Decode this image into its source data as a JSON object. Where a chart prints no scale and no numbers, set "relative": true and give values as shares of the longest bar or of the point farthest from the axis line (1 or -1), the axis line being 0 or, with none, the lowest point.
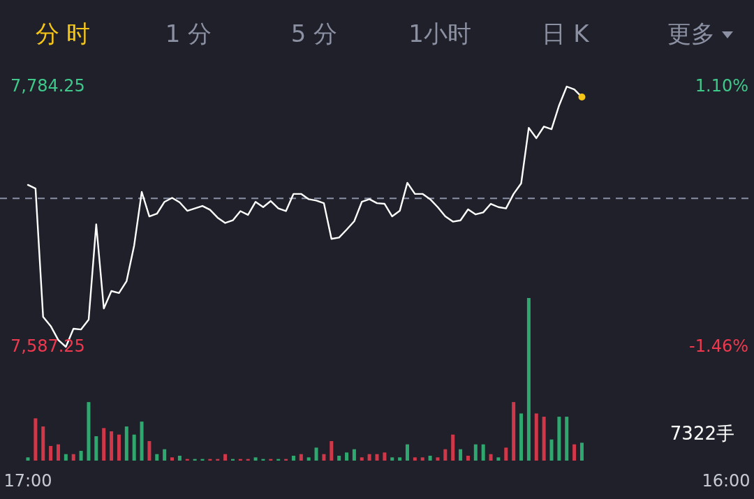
{
  "chart_data": [
    {
      "type": "line",
      "annotations": [
        "分 时",
        "1 分",
        "5 分",
        "1小时",
        "日 K",
        "更多"
      ],
      "categories": [
        null,
        null,
        null,
        null,
        null,
        null,
        null,
        null,
        null,
        null,
        null,
        null,
        null,
        null,
        null,
        null,
        null,
        null,
        null,
        null,
        null,
        null,
        null,
        null,
        null,
        null,
        null,
        null,
        null,
        null,
        null,
        null,
        null,
        null,
        null,
        null,
        null,
        null,
        null,
        null,
        null,
        null,
        null,
        null,
        null,
        null,
        null,
        null,
        null,
        null,
        null,
        null,
        null,
        null,
        null,
        null,
        null,
        null,
        null,
        null,
        null,
        null,
        null,
        null,
        null,
        null,
        null,
        null,
        null,
        null,
        null,
        null,
        null,
        null,
        null,
        null,
        null,
        null,
        null,
        null,
        null,
        null,
        null,
        null,
        null,
        null,
        null,
        null,
        null,
        null,
        null,
        null,
        null
      ],
      "series": [
        {
          "color": "#ffffff",
          "values": [
            7709.8,
            7707.1,
            7610,
            7603,
            7592.5,
            7587.25,
            7601,
            7600.4,
            7607.8,
            7680,
            7616.3,
            7629.5,
            7628,
            7637,
            7664,
            7704.5,
            7686,
            7688,
            7697,
            7700,
            7696.6,
            7690.2,
            7692,
            7693.9,
            7691,
            7685,
            7681,
            7683,
            7690,
            7687.1,
            7697,
            7693,
            7697.6,
            7692,
            7690,
            7703,
            7703,
            7699,
            7698,
            7696,
            7669,
            7670,
            7676,
            7682.3,
            7697,
            7699,
            7696,
            7695.5,
            7686,
            7690.2,
            7711.4,
            7703,
            7703,
            7699,
            7693,
            7686,
            7682,
            7683,
            7691.3,
            7687.5,
            7689,
            7695.5,
            7693,
            7692,
            7703,
            7711,
            7753,
            7745.2,
            7754,
            7752,
            7770,
            7784.25,
            7782.1,
            7776.3,
            null,
            null,
            null,
            null,
            null,
            null,
            null,
            null,
            null,
            null,
            null,
            null,
            null,
            null,
            null,
            null,
            null,
            null,
            null
          ]
        },
        {
          "type": "scatter",
          "color": "#f5c518",
          "values": [
            null,
            null,
            null,
            null,
            null,
            null,
            null,
            null,
            null,
            null,
            null,
            null,
            null,
            null,
            null,
            null,
            null,
            null,
            null,
            null,
            null,
            null,
            null,
            null,
            null,
            null,
            null,
            null,
            null,
            null,
            null,
            null,
            null,
            null,
            null,
            null,
            null,
            null,
            null,
            null,
            null,
            null,
            null,
            null,
            null,
            null,
            null,
            null,
            null,
            null,
            null,
            null,
            null,
            null,
            null,
            null,
            null,
            null,
            null,
            null,
            null,
            null,
            null,
            null,
            null,
            null,
            null,
            null,
            null,
            null,
            null,
            null,
            null,
            7776.3,
            null,
            null,
            null,
            null,
            null,
            null,
            null,
            null,
            null,
            null,
            null,
            null,
            null,
            null,
            null,
            null,
            null,
            null,
            null
          ]
        }
      ],
      "ylim": [
        7587.25,
        7784.25
      ],
      "yticks": [
        {
          "value": 7784.25,
          "label": "7,784.25"
        },
        {
          "value": 7587.25,
          "label": "7,587.25"
        }
      ],
      "y2lim": [
        -1.46,
        1.1
      ],
      "y2ticks": [
        {
          "value": 1.1,
          "label": "1.10%"
        },
        {
          "value": -1.46,
          "label": "-1.46%"
        }
      ],
      "ref_lines": [
        {
          "axis": "y",
          "value": 7699.6,
          "color": "#8a90a6",
          "line_style": "dashed"
        }
      ],
      "tick_labels": "y"
    },
    {
      "type": "bar",
      "relative": true,
      "annotations": [
        "7322手"
      ],
      "categories": [
        "17:00",
        null,
        null,
        null,
        null,
        null,
        null,
        null,
        null,
        null,
        null,
        null,
        null,
        null,
        null,
        null,
        null,
        null,
        null,
        null,
        null,
        null,
        null,
        null,
        null,
        null,
        null,
        null,
        null,
        null,
        null,
        null,
        null,
        null,
        null,
        null,
        null,
        null,
        null,
        null,
        null,
        null,
        null,
        null,
        null,
        null,
        null,
        null,
        null,
        null,
        null,
        null,
        null,
        null,
        null,
        null,
        null,
        null,
        null,
        null,
        null,
        null,
        null,
        null,
        null,
        null,
        null,
        null,
        null,
        null,
        null,
        null,
        null,
        null,
        null,
        null,
        null,
        null,
        null,
        null,
        null,
        null,
        null,
        null,
        null,
        null,
        null,
        null,
        null,
        null,
        null,
        null,
        "16:00"
      ],
      "values": [
        0.02,
        0.26,
        0.21,
        0.09,
        0.1,
        0.04,
        0.04,
        0.06,
        0.36,
        0.15,
        0.2,
        0.18,
        0.16,
        0.21,
        0.16,
        0.24,
        0.12,
        0.04,
        0.07,
        0.02,
        0.03,
        0.01,
        0.01,
        0.01,
        0.01,
        0.01,
        0.04,
        0.01,
        0.01,
        0.01,
        0.02,
        0.01,
        0.01,
        0.01,
        0.01,
        0.03,
        0.04,
        0.02,
        0.08,
        0.04,
        0.12,
        0.03,
        0.05,
        0.07,
        0.02,
        0.04,
        0.04,
        0.05,
        0.02,
        0.02,
        0.1,
        0.02,
        0.02,
        0.03,
        0.02,
        0.07,
        0.16,
        0.07,
        0.03,
        0.1,
        0.1,
        0.04,
        0.02,
        0.08,
        0.36,
        0.29,
        1,
        0.29,
        0.27,
        0.13,
        0.27,
        0.27,
        0.1,
        0.11,
        null,
        null,
        null,
        null,
        null,
        null,
        null,
        null,
        null,
        null,
        null,
        null,
        null,
        null,
        null,
        null,
        null,
        null,
        null
      ],
      "colors": [
        "#2fa86f",
        "#d0384a",
        "#d0384a",
        "#d0384a",
        "#d0384a",
        "#2fa86f",
        "#d0384a",
        "#2fa86f",
        "#2fa86f",
        "#2fa86f",
        "#d0384a",
        "#d0384a",
        "#d0384a",
        "#2fa86f",
        "#2fa86f",
        "#2fa86f",
        "#d0384a",
        "#2fa86f",
        "#2fa86f",
        "#d0384a",
        "#2fa86f",
        "#d0384a",
        "#2fa86f",
        "#2fa86f",
        "#d0384a",
        "#d0384a",
        "#d0384a",
        "#2fa86f",
        "#d0384a",
        "#d0384a",
        "#2fa86f",
        "#2fa86f",
        "#d0384a",
        "#2fa86f",
        "#d0384a",
        "#2fa86f",
        "#d0384a",
        "#2fa86f",
        "#2fa86f",
        "#d0384a",
        "#d0384a",
        "#2fa86f",
        "#2fa86f",
        "#2fa86f",
        "#d0384a",
        "#d0384a",
        "#d0384a",
        "#d0384a",
        "#2fa86f",
        "#2fa86f",
        "#2fa86f",
        "#d0384a",
        "#d0384a",
        "#2fa86f",
        "#d0384a",
        "#d0384a",
        "#d0384a",
        "#2fa86f",
        "#d0384a",
        "#2fa86f",
        "#2fa86f",
        "#d0384a",
        "#2fa86f",
        "#d0384a",
        "#d0384a",
        "#2fa86f",
        "#2fa86f",
        "#d0384a",
        "#d0384a",
        "#2fa86f",
        "#2fa86f",
        "#2fa86f",
        "#d0384a",
        "#2fa86f",
        null,
        null,
        null,
        null,
        null,
        null,
        null,
        null,
        null,
        null,
        null,
        null,
        null,
        null,
        null,
        null,
        null,
        null,
        null
      ],
      "tick_labels": "x"
    }
  ]
}
